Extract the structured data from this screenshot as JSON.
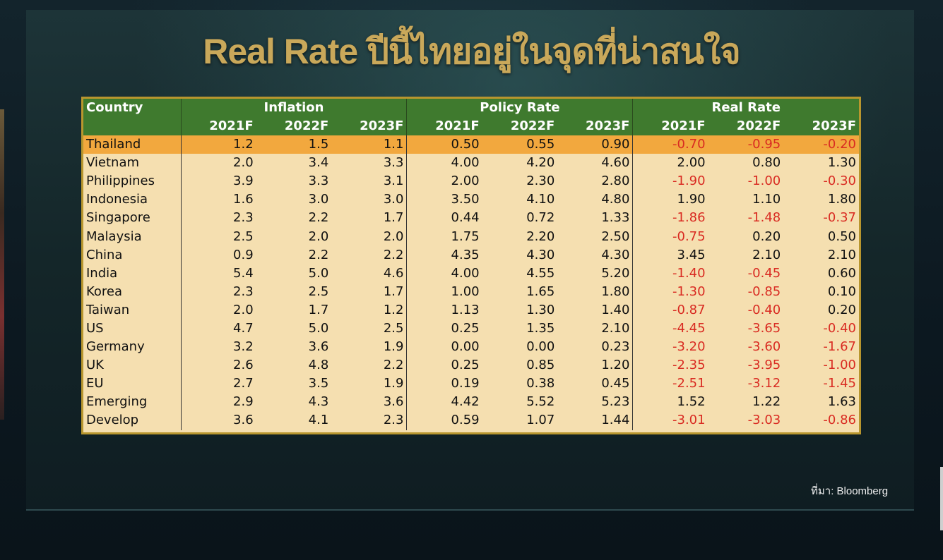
{
  "title": "Real Rate ปีนี้ไทยอยู่ในจุดที่น่าสนใจ",
  "source": "ที่มา: Bloomberg",
  "table": {
    "country_header": "Country",
    "groups": [
      "Inflation",
      "Policy Rate",
      "Real Rate"
    ],
    "years": [
      "2021F",
      "2022F",
      "2023F"
    ],
    "rows": [
      {
        "country": "Thailand",
        "inflation": [
          "1.2",
          "1.5",
          "1.1"
        ],
        "policy": [
          "0.50",
          "0.55",
          "0.90"
        ],
        "real": [
          "-0.70",
          "-0.95",
          "-0.20"
        ]
      },
      {
        "country": "Vietnam",
        "inflation": [
          "2.0",
          "3.4",
          "3.3"
        ],
        "policy": [
          "4.00",
          "4.20",
          "4.60"
        ],
        "real": [
          "2.00",
          "0.80",
          "1.30"
        ]
      },
      {
        "country": "Philippines",
        "inflation": [
          "3.9",
          "3.3",
          "3.1"
        ],
        "policy": [
          "2.00",
          "2.30",
          "2.80"
        ],
        "real": [
          "-1.90",
          "-1.00",
          "-0.30"
        ]
      },
      {
        "country": "Indonesia",
        "inflation": [
          "1.6",
          "3.0",
          "3.0"
        ],
        "policy": [
          "3.50",
          "4.10",
          "4.80"
        ],
        "real": [
          "1.90",
          "1.10",
          "1.80"
        ]
      },
      {
        "country": "Singapore",
        "inflation": [
          "2.3",
          "2.2",
          "1.7"
        ],
        "policy": [
          "0.44",
          "0.72",
          "1.33"
        ],
        "real": [
          "-1.86",
          "-1.48",
          "-0.37"
        ]
      },
      {
        "country": "Malaysia",
        "inflation": [
          "2.5",
          "2.0",
          "2.0"
        ],
        "policy": [
          "1.75",
          "2.20",
          "2.50"
        ],
        "real": [
          "-0.75",
          "0.20",
          "0.50"
        ]
      },
      {
        "country": "China",
        "inflation": [
          "0.9",
          "2.2",
          "2.2"
        ],
        "policy": [
          "4.35",
          "4.30",
          "4.30"
        ],
        "real": [
          "3.45",
          "2.10",
          "2.10"
        ]
      },
      {
        "country": "India",
        "inflation": [
          "5.4",
          "5.0",
          "4.6"
        ],
        "policy": [
          "4.00",
          "4.55",
          "5.20"
        ],
        "real": [
          "-1.40",
          "-0.45",
          "0.60"
        ]
      },
      {
        "country": "Korea",
        "inflation": [
          "2.3",
          "2.5",
          "1.7"
        ],
        "policy": [
          "1.00",
          "1.65",
          "1.80"
        ],
        "real": [
          "-1.30",
          "-0.85",
          "0.10"
        ]
      },
      {
        "country": "Taiwan",
        "inflation": [
          "2.0",
          "1.7",
          "1.2"
        ],
        "policy": [
          "1.13",
          "1.30",
          "1.40"
        ],
        "real": [
          "-0.87",
          "-0.40",
          "0.20"
        ]
      },
      {
        "country": "US",
        "inflation": [
          "4.7",
          "5.0",
          "2.5"
        ],
        "policy": [
          "0.25",
          "1.35",
          "2.10"
        ],
        "real": [
          "-4.45",
          "-3.65",
          "-0.40"
        ]
      },
      {
        "country": "Germany",
        "inflation": [
          "3.2",
          "3.6",
          "1.9"
        ],
        "policy": [
          "0.00",
          "0.00",
          "0.23"
        ],
        "real": [
          "-3.20",
          "-3.60",
          "-1.67"
        ]
      },
      {
        "country": "UK",
        "inflation": [
          "2.6",
          "4.8",
          "2.2"
        ],
        "policy": [
          "0.25",
          "0.85",
          "1.20"
        ],
        "real": [
          "-2.35",
          "-3.95",
          "-1.00"
        ]
      },
      {
        "country": "EU",
        "inflation": [
          "2.7",
          "3.5",
          "1.9"
        ],
        "policy": [
          "0.19",
          "0.38",
          "0.45"
        ],
        "real": [
          "-2.51",
          "-3.12",
          "-1.45"
        ]
      },
      {
        "country": "Emerging",
        "inflation": [
          "2.9",
          "4.3",
          "3.6"
        ],
        "policy": [
          "4.42",
          "5.52",
          "5.23"
        ],
        "real": [
          "1.52",
          "1.22",
          "1.63"
        ]
      },
      {
        "country": "Develop",
        "inflation": [
          "3.6",
          "4.1",
          "2.3"
        ],
        "policy": [
          "0.59",
          "1.07",
          "1.44"
        ],
        "real": [
          "-3.01",
          "-3.03",
          "-0.86"
        ]
      }
    ]
  },
  "colors": {
    "header_bg": "#3f7a2e",
    "row_bg": "#f5dfb0",
    "highlight_bg": "#f2a83e",
    "negative_text": "#d92b22",
    "title_gold": "#c9a85a"
  }
}
